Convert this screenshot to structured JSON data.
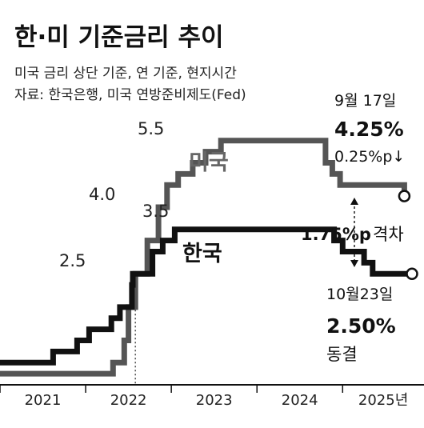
{
  "chart_data": {
    "type": "line",
    "title": "한·미 기준금리 추이",
    "subtitle_lines": [
      "미국 금리 상단 기준, 연 기준, 현지시간",
      "자료: 한국은행, 미국 연방준비제도(Fed)"
    ],
    "x_tick_labels": [
      "2021",
      "2022",
      "2023",
      "2024",
      "2025년"
    ],
    "xlim": [
      2021.0,
      2025.95
    ],
    "ylim": [
      0.0,
      6.0
    ],
    "grid": false,
    "series": [
      {
        "name": "미국",
        "color": "#555555",
        "points": [
          [
            2021.0,
            0.25
          ],
          [
            2022.2,
            0.25
          ],
          [
            2022.32,
            0.5
          ],
          [
            2022.45,
            1.0
          ],
          [
            2022.5,
            1.75
          ],
          [
            2022.58,
            2.5
          ],
          [
            2022.72,
            3.25
          ],
          [
            2022.85,
            4.0
          ],
          [
            2022.95,
            4.5
          ],
          [
            2023.08,
            4.75
          ],
          [
            2023.25,
            5.0
          ],
          [
            2023.4,
            5.25
          ],
          [
            2023.58,
            5.5
          ],
          [
            2024.7,
            5.5
          ],
          [
            2024.8,
            5.0
          ],
          [
            2024.88,
            4.75
          ],
          [
            2024.97,
            4.5
          ],
          [
            2025.7,
            4.5
          ],
          [
            2025.72,
            4.25
          ]
        ]
      },
      {
        "name": "한국",
        "color": "#111111",
        "points": [
          [
            2021.0,
            0.5
          ],
          [
            2021.62,
            0.75
          ],
          [
            2021.9,
            1.0
          ],
          [
            2022.04,
            1.25
          ],
          [
            2022.3,
            1.5
          ],
          [
            2022.4,
            1.75
          ],
          [
            2022.54,
            2.25
          ],
          [
            2022.55,
            2.5
          ],
          [
            2022.78,
            3.0
          ],
          [
            2022.9,
            3.25
          ],
          [
            2023.04,
            3.5
          ],
          [
            2024.78,
            3.5
          ],
          [
            2024.9,
            3.25
          ],
          [
            2025.0,
            3.0
          ],
          [
            2025.25,
            2.75
          ],
          [
            2025.35,
            2.5
          ],
          [
            2025.81,
            2.5
          ]
        ]
      }
    ],
    "annotations": {
      "us_peak": "5.5",
      "us_step": "4.0",
      "kr_peak": "3.5",
      "kr_step": "2.5",
      "us_label": "미국",
      "kr_label": "한국",
      "us_date": "9월 17일",
      "us_rate": "4.25%",
      "us_change": "0.25%p↓",
      "gap": "1.75%p",
      "gap_suffix": "격차",
      "kr_date": "10월23일",
      "kr_rate": "2.50%",
      "kr_status": "동결"
    }
  }
}
